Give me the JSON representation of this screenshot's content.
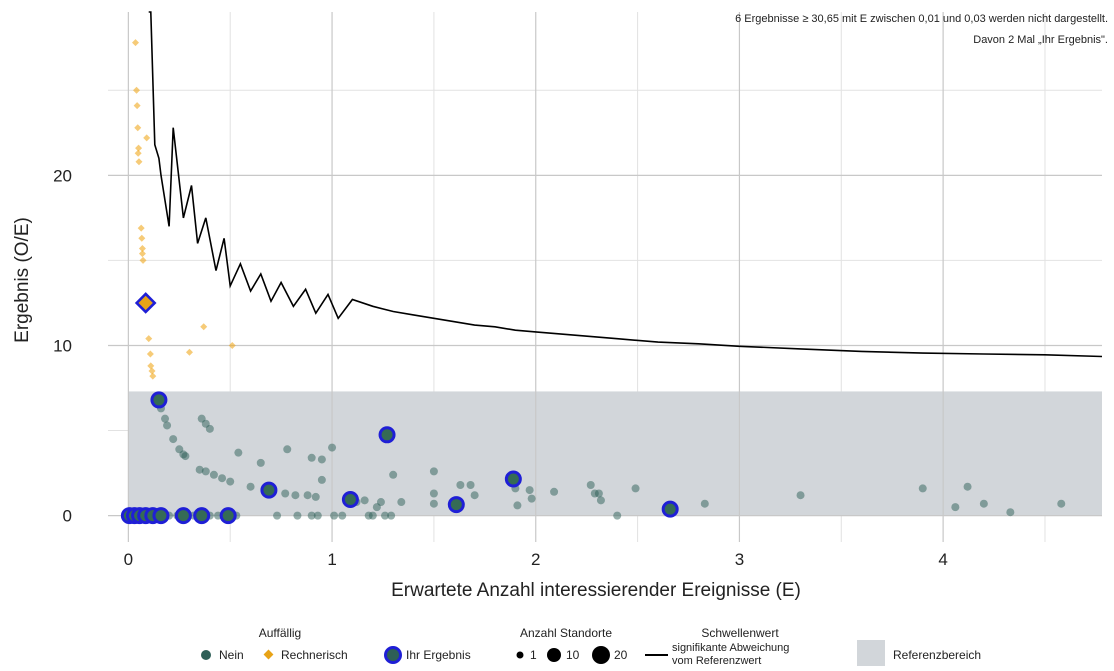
{
  "chart_data": {
    "type": "scatter",
    "xlabel": "Erwartete Anzahl interessierender Ereignisse (E)",
    "ylabel": "Ergebnis (O/E)",
    "xlim": [
      -0.1,
      4.78
    ],
    "ylim": [
      -1.55,
      29.6
    ],
    "x_ticks": [
      0,
      1,
      2,
      3,
      4
    ],
    "y_ticks": [
      0,
      10,
      20
    ],
    "grid": true,
    "reference_range": [
      0,
      7.3
    ],
    "notes": [
      "6 Ergebnisse ≥ 30,65 mit E zwischen 0,01 und 0,03 werden nicht dargestellt.",
      "Davon 2 Mal „Ihr Ergebnis\"."
    ],
    "colors": {
      "nein": "#2e5f57",
      "rechnerisch": "#f0a81e",
      "ihr_ergebnis_ring": "#1f1fd6",
      "reference_band": "#d2d6da",
      "threshold_line": "#000000",
      "grid": "#c8c8c8"
    },
    "series": [
      {
        "name": "Nein",
        "marker": "circle",
        "points": [
          [
            0.01,
            0
          ],
          [
            0.03,
            0
          ],
          [
            0.05,
            0
          ],
          [
            0.07,
            0
          ],
          [
            0.09,
            0
          ],
          [
            0.11,
            0
          ],
          [
            0.13,
            0
          ],
          [
            0.16,
            0
          ],
          [
            0.2,
            0
          ],
          [
            0.24,
            0
          ],
          [
            0.28,
            0
          ],
          [
            0.32,
            0
          ],
          [
            0.36,
            0
          ],
          [
            0.4,
            0
          ],
          [
            0.44,
            0
          ],
          [
            0.49,
            0
          ],
          [
            0.53,
            0
          ],
          [
            0.73,
            0
          ],
          [
            0.83,
            0
          ],
          [
            0.9,
            0
          ],
          [
            0.93,
            0
          ],
          [
            1.01,
            0
          ],
          [
            1.05,
            0
          ],
          [
            1.18,
            0
          ],
          [
            1.2,
            0
          ],
          [
            1.26,
            0
          ],
          [
            1.29,
            0
          ],
          [
            2.4,
            0
          ],
          [
            0.16,
            6.3
          ],
          [
            0.18,
            5.7
          ],
          [
            0.19,
            5.3
          ],
          [
            0.22,
            4.5
          ],
          [
            0.25,
            3.9
          ],
          [
            0.27,
            3.6
          ],
          [
            0.28,
            3.5
          ],
          [
            0.35,
            2.7
          ],
          [
            0.38,
            2.6
          ],
          [
            0.42,
            2.4
          ],
          [
            0.46,
            2.2
          ],
          [
            0.5,
            2.0
          ],
          [
            0.36,
            5.7
          ],
          [
            0.38,
            5.4
          ],
          [
            0.4,
            5.1
          ],
          [
            0.54,
            3.7
          ],
          [
            0.65,
            3.1
          ],
          [
            0.6,
            1.7
          ],
          [
            0.78,
            3.9
          ],
          [
            0.9,
            3.4
          ],
          [
            0.95,
            3.3
          ],
          [
            1.0,
            4.0
          ],
          [
            0.95,
            2.1
          ],
          [
            0.77,
            1.3
          ],
          [
            0.82,
            1.2
          ],
          [
            0.88,
            1.2
          ],
          [
            0.92,
            1.1
          ],
          [
            1.12,
            0.8
          ],
          [
            1.16,
            0.9
          ],
          [
            1.22,
            0.5
          ],
          [
            1.24,
            0.8
          ],
          [
            1.3,
            2.4
          ],
          [
            1.34,
            0.8
          ],
          [
            1.5,
            2.6
          ],
          [
            1.5,
            1.3
          ],
          [
            1.5,
            0.7
          ],
          [
            1.63,
            1.8
          ],
          [
            1.68,
            1.8
          ],
          [
            1.7,
            1.2
          ],
          [
            1.9,
            1.6
          ],
          [
            1.91,
            0.6
          ],
          [
            1.97,
            1.5
          ],
          [
            1.98,
            1.0
          ],
          [
            2.09,
            1.4
          ],
          [
            2.27,
            1.8
          ],
          [
            2.29,
            1.3
          ],
          [
            2.31,
            1.3
          ],
          [
            2.32,
            0.9
          ],
          [
            2.49,
            1.6
          ],
          [
            2.83,
            0.7
          ],
          [
            3.3,
            1.2
          ],
          [
            3.9,
            1.6
          ],
          [
            4.06,
            0.5
          ],
          [
            4.12,
            1.7
          ],
          [
            4.2,
            0.7
          ],
          [
            4.33,
            0.2
          ],
          [
            4.58,
            0.7
          ]
        ]
      },
      {
        "name": "Rechnerisch",
        "marker": "diamond",
        "points": [
          [
            0.035,
            27.8
          ],
          [
            0.04,
            25.0
          ],
          [
            0.043,
            24.1
          ],
          [
            0.046,
            22.8
          ],
          [
            0.05,
            21.6
          ],
          [
            0.048,
            21.3
          ],
          [
            0.052,
            20.8
          ],
          [
            0.09,
            22.2
          ],
          [
            0.063,
            16.9
          ],
          [
            0.066,
            16.3
          ],
          [
            0.069,
            15.7
          ],
          [
            0.069,
            15.4
          ],
          [
            0.072,
            15.0
          ],
          [
            0.1,
            10.4
          ],
          [
            0.108,
            9.5
          ],
          [
            0.11,
            8.8
          ],
          [
            0.116,
            8.5
          ],
          [
            0.12,
            8.2
          ],
          [
            0.3,
            9.6
          ],
          [
            0.37,
            11.1
          ],
          [
            0.51,
            10.0
          ]
        ]
      },
      {
        "name": "Ihr Ergebnis",
        "marker": "ring",
        "points": [
          [
            0.15,
            6.8
          ],
          [
            0.085,
            12.5
          ],
          [
            0.005,
            0
          ],
          [
            0.03,
            0
          ],
          [
            0.055,
            0
          ],
          [
            0.085,
            0
          ],
          [
            0.12,
            0
          ],
          [
            0.16,
            0
          ],
          [
            0.27,
            0
          ],
          [
            0.36,
            0
          ],
          [
            0.49,
            0
          ],
          [
            0.69,
            1.5
          ],
          [
            1.09,
            0.95
          ],
          [
            1.27,
            4.75
          ],
          [
            1.61,
            0.65
          ],
          [
            1.89,
            2.15
          ],
          [
            2.66,
            0.38
          ]
        ]
      }
    ],
    "threshold_line": {
      "name": "Schwellenwert signifikante Abweichung vom Referenzwert",
      "x": [
        0.1,
        0.11,
        0.13,
        0.15,
        0.16,
        0.2,
        0.22,
        0.27,
        0.31,
        0.34,
        0.38,
        0.43,
        0.47,
        0.5,
        0.55,
        0.6,
        0.65,
        0.7,
        0.75,
        0.81,
        0.87,
        0.92,
        0.98,
        1.03,
        1.1,
        1.2,
        1.3,
        1.4,
        1.5,
        1.6,
        1.7,
        1.8,
        1.9,
        2.0,
        2.2,
        2.4,
        2.6,
        2.8,
        3.0,
        3.3,
        3.6,
        3.9,
        4.2,
        4.5,
        4.78
      ],
      "y": [
        29.6,
        29.6,
        21.8,
        21.0,
        20.0,
        17.0,
        22.8,
        17.5,
        19.4,
        16.0,
        17.5,
        14.4,
        16.3,
        13.5,
        14.8,
        13.2,
        14.2,
        12.6,
        13.7,
        12.3,
        13.3,
        11.9,
        13.0,
        11.6,
        12.7,
        12.3,
        12.0,
        11.8,
        11.6,
        11.4,
        11.2,
        11.1,
        10.9,
        10.8,
        10.6,
        10.4,
        10.2,
        10.1,
        9.95,
        9.8,
        9.65,
        9.55,
        9.5,
        9.45,
        9.35
      ]
    },
    "legend": {
      "position": "bottom",
      "auffaellig_title": "Auffällig",
      "nein_label": "Nein",
      "rechnerisch_label": "Rechnerisch",
      "ihr_ergebnis_label": "Ihr Ergebnis",
      "standorte_title": "Anzahl Standorte",
      "size_labels": [
        "1",
        "10",
        "20"
      ],
      "threshold_title": "Schwellenwert",
      "threshold_lines": [
        "signifikante Abweichung",
        "vom Referenzwert"
      ],
      "reference_label": "Referenzbereich"
    }
  }
}
